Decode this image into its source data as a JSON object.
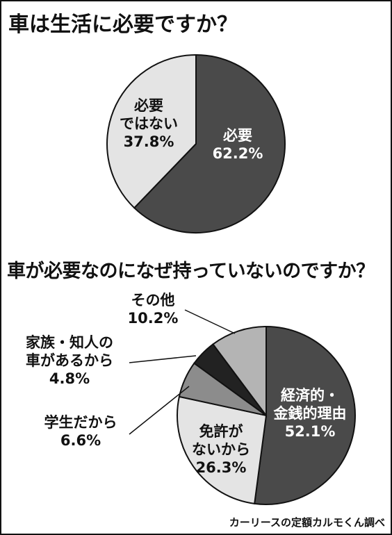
{
  "chart_data": [
    {
      "type": "pie",
      "title": "車は生活に必要ですか？",
      "slices": [
        {
          "label": [
            "必要"
          ],
          "percent_text": "62.2%",
          "value": 62.2,
          "color": "#4a4a4a",
          "text_color": "#ffffff"
        },
        {
          "label": [
            "必要",
            "ではない"
          ],
          "percent_text": "37.8%",
          "value": 37.8,
          "color": "#e4e4e4",
          "text_color": "#111111"
        }
      ]
    },
    {
      "type": "pie",
      "title": "車が必要なのになぜ持っていないのですか？",
      "slices": [
        {
          "label": [
            "経済的・",
            "金銭的理由"
          ],
          "percent_text": "52.1%",
          "value": 52.1,
          "color": "#4a4a4a",
          "text_color": "#ffffff"
        },
        {
          "label": [
            "免許が",
            "ないから"
          ],
          "percent_text": "26.3%",
          "value": 26.3,
          "color": "#e4e4e4",
          "text_color": "#111111"
        },
        {
          "label": [
            "学生だから"
          ],
          "percent_text": "6.6%",
          "value": 6.6,
          "color": "#8c8c8c",
          "text_color": "#111111"
        },
        {
          "label": [
            "家族・知人の",
            "車があるから"
          ],
          "percent_text": "4.8%",
          "value": 4.8,
          "color": "#222222",
          "text_color": "#111111"
        },
        {
          "label": [
            "その他"
          ],
          "percent_text": "10.2%",
          "value": 10.2,
          "color": "#b4b4b4",
          "text_color": "#111111"
        }
      ]
    }
  ],
  "source": "カーリースの定額カルモくん調べ"
}
